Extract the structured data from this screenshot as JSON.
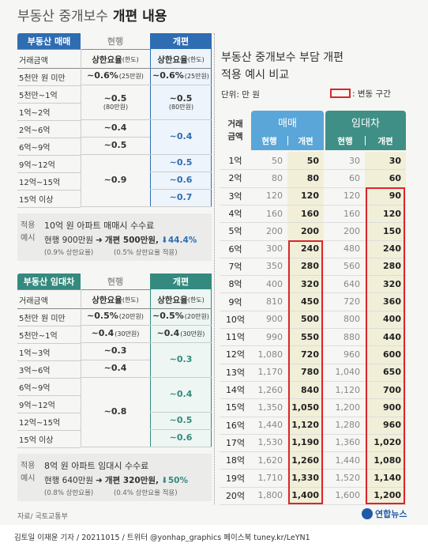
{
  "header": {
    "title_normal": "부동산 중개보수",
    "title_bold": "개편 내용"
  },
  "sale": {
    "section": "부동산 매매",
    "current_label": "현행",
    "reform_label": "개편",
    "col_amount": "거래금액",
    "col_current": {
      "main": "상한요율",
      "note": "(한도)"
    },
    "col_reform": {
      "main": "상한요율",
      "note": "(한도)"
    },
    "amounts": [
      "5천만 원 미만",
      "5천만~1억",
      "1억~2억",
      "2억~6억",
      "6억~9억",
      "9억~12억",
      "12억~15억",
      "15억 이상"
    ],
    "current": [
      {
        "rate": "~0.6%",
        "cap": "(25만원)"
      },
      {
        "rate": "~0.5",
        "cap": "(80만원)"
      },
      {
        "rate": "~0.4"
      },
      {
        "rate": "~0.5"
      },
      {
        "rate": "~0.9"
      }
    ],
    "reform": [
      {
        "rate": "~0.6%",
        "cap": "(25만원)"
      },
      {
        "rate": "~0.5",
        "cap": "(80만원)"
      },
      {
        "rate": "~0.4"
      },
      {
        "rate": "~0.5"
      },
      {
        "rate": "~0.6"
      },
      {
        "rate": "~0.7"
      }
    ],
    "example": {
      "label": [
        "적용",
        "예시"
      ],
      "title": "10억 원 아파트 매매시 수수료",
      "current": "현행 900만원",
      "reform": "개편 500만원,",
      "change": "44.4%",
      "current_note": "(0.9% 상한요율)",
      "reform_note": "(0.5% 상한요율 적용)"
    }
  },
  "lease": {
    "section": "부동산 임대차",
    "current_label": "현행",
    "reform_label": "개편",
    "col_amount": "거래금액",
    "col_current": {
      "main": "상한요율",
      "note": "(한도)"
    },
    "col_reform": {
      "main": "상한요율",
      "note": "(한도)"
    },
    "amounts": [
      "5천만 원 미만",
      "5천만~1억",
      "1억~3억",
      "3억~6억",
      "6억~9억",
      "9억~12억",
      "12억~15억",
      "15억 이상"
    ],
    "current": [
      {
        "rate": "~0.5%",
        "cap": "(20만원)"
      },
      {
        "rate": "~0.4",
        "cap": "(30만원)"
      },
      {
        "rate": "~0.3"
      },
      {
        "rate": "~0.4"
      },
      {
        "rate": "~0.8"
      }
    ],
    "reform": [
      {
        "rate": "~0.5%",
        "cap": "(20만원)"
      },
      {
        "rate": "~0.4",
        "cap": "(30만원)"
      },
      {
        "rate": "~0.3"
      },
      {
        "rate": "~0.4"
      },
      {
        "rate": "~0.5"
      },
      {
        "rate": "~0.6"
      }
    ],
    "example": {
      "label": [
        "적용",
        "예시"
      ],
      "title": "8억 원 아파트 임대시 수수료",
      "current": "현행 640만원",
      "reform": "개편 320만원,",
      "change": "50%",
      "current_note": "(0.8% 상한요율)",
      "reform_note": "(0.4% 상한요율 적용)"
    }
  },
  "compare": {
    "title": [
      "부동산 중개보수 부담 개편",
      "적용 예시 비교"
    ],
    "unit": "단위: 만 원",
    "legend": ": 변동 구간",
    "amount_header": [
      "거래",
      "금액"
    ],
    "groups": [
      "매매",
      "임대차"
    ],
    "subheaders": [
      "현행",
      "개편",
      "현행",
      "개편"
    ],
    "rows": [
      [
        "1억",
        "50",
        "50",
        "30",
        "30"
      ],
      [
        "2억",
        "80",
        "80",
        "60",
        "60"
      ],
      [
        "3억",
        "120",
        "120",
        "120",
        "90"
      ],
      [
        "4억",
        "160",
        "160",
        "160",
        "120"
      ],
      [
        "5억",
        "200",
        "200",
        "200",
        "150"
      ],
      [
        "6억",
        "300",
        "240",
        "480",
        "240"
      ],
      [
        "7억",
        "350",
        "280",
        "560",
        "280"
      ],
      [
        "8억",
        "400",
        "320",
        "640",
        "320"
      ],
      [
        "9억",
        "810",
        "450",
        "720",
        "360"
      ],
      [
        "10억",
        "900",
        "500",
        "800",
        "400"
      ],
      [
        "11억",
        "990",
        "550",
        "880",
        "440"
      ],
      [
        "12억",
        "1,080",
        "720",
        "960",
        "600"
      ],
      [
        "13억",
        "1,170",
        "780",
        "1,040",
        "650"
      ],
      [
        "14억",
        "1,260",
        "840",
        "1,120",
        "700"
      ],
      [
        "15억",
        "1,350",
        "1,050",
        "1,200",
        "900"
      ],
      [
        "16억",
        "1,440",
        "1,120",
        "1,280",
        "960"
      ],
      [
        "17억",
        "1,530",
        "1,190",
        "1,360",
        "1,020"
      ],
      [
        "18억",
        "1,620",
        "1,260",
        "1,440",
        "1,080"
      ],
      [
        "19억",
        "1,710",
        "1,330",
        "1,520",
        "1,140"
      ],
      [
        "20억",
        "1,800",
        "1,400",
        "1,600",
        "1,200"
      ]
    ]
  },
  "footer": {
    "source": "자료/ 국토교통부",
    "logo": "연합뉴스",
    "credit": "김토일 이재윤 기자 / 20211015 / 트위터 @yonhap_graphics  페이스북 tuney.kr/LeYN1"
  }
}
